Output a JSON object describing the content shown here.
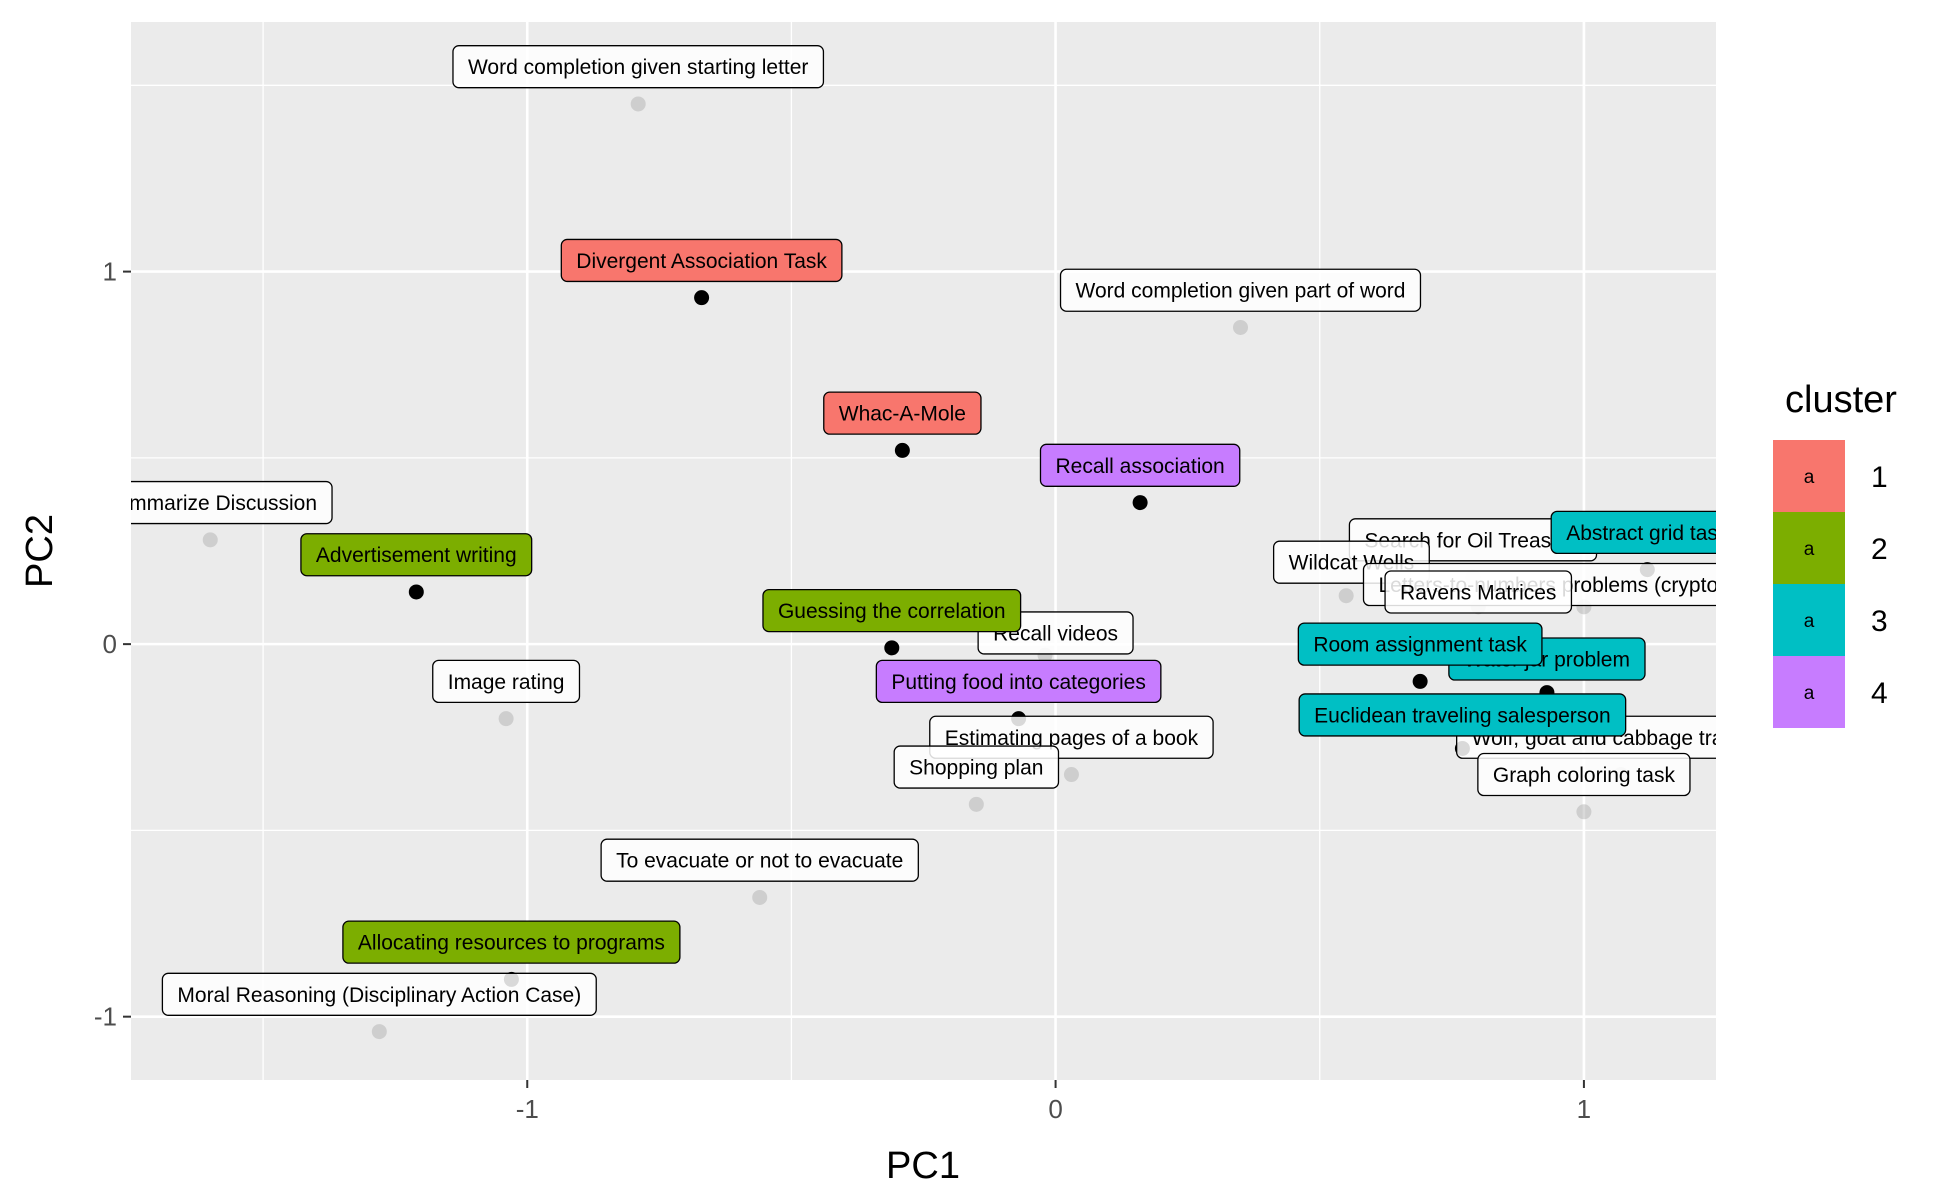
{
  "chart_data": {
    "type": "scatter",
    "xlabel": "PC1",
    "ylabel": "PC2",
    "xlim": [
      -1.75,
      1.25
    ],
    "ylim": [
      -1.17,
      1.67
    ],
    "x_ticks": [
      -1,
      0,
      1
    ],
    "x_tick_labels": [
      "-1",
      "0",
      "1"
    ],
    "y_ticks": [
      -1,
      0,
      1
    ],
    "y_tick_labels": [
      "-1",
      "0",
      "1"
    ],
    "grid": true,
    "legend": {
      "title": "cluster",
      "position": "right",
      "key_glyph": "a",
      "entries": [
        {
          "label": "1",
          "color": "#F8766D"
        },
        {
          "label": "2",
          "color": "#7CAE00"
        },
        {
          "label": "3",
          "color": "#00BFC4"
        },
        {
          "label": "4",
          "color": "#C77CFF"
        }
      ]
    },
    "points": [
      {
        "label": "Word completion given starting letter",
        "x": -0.79,
        "y": 1.45,
        "cluster": null
      },
      {
        "label": "Divergent Association Task",
        "x": -0.67,
        "y": 0.93,
        "cluster": 1
      },
      {
        "label": "Word completion given part of word",
        "x": 0.35,
        "y": 0.85,
        "cluster": null
      },
      {
        "label": "Whac-A-Mole",
        "x": -0.29,
        "y": 0.52,
        "cluster": 1
      },
      {
        "label": "Recall association",
        "x": 0.16,
        "y": 0.38,
        "cluster": 4
      },
      {
        "label": "Summarize Discussion",
        "x": -1.6,
        "y": 0.28,
        "cluster": null
      },
      {
        "label": "Advertisement writing",
        "x": -1.21,
        "y": 0.14,
        "cluster": 2
      },
      {
        "label": "Search for Oil Treasure",
        "x": 0.79,
        "y": 0.18,
        "cluster": null
      },
      {
        "label": "Abstract grid task",
        "x": 1.12,
        "y": 0.2,
        "cluster": 3
      },
      {
        "label": "Wildcat Wells",
        "x": 0.55,
        "y": 0.13,
        "cluster": null
      },
      {
        "label": "Letters-to-numbers problems (cryptography)",
        "x": 1.0,
        "y": 0.1,
        "cluster": null
      },
      {
        "label": "Ravens Matrices",
        "x": 0.8,
        "y": 0.1,
        "cluster": null
      },
      {
        "label": "Guessing the correlation",
        "x": -0.31,
        "y": -0.01,
        "cluster": 2
      },
      {
        "label": "Recall videos",
        "x": -0.02,
        "y": -0.03,
        "cluster": null
      },
      {
        "label": "Room assignment task",
        "x": 0.69,
        "y": -0.1,
        "cluster": 3
      },
      {
        "label": "Unlabeled point",
        "x": 0.93,
        "y": -0.13,
        "cluster": 3
      },
      {
        "label": "Image rating",
        "x": -1.04,
        "y": -0.2,
        "cluster": null
      },
      {
        "label": "Putting food into categories",
        "x": -0.07,
        "y": -0.2,
        "cluster": 4
      },
      {
        "label": "Euclidean traveling salesperson",
        "x": 0.77,
        "y": -0.28,
        "cluster": 3
      },
      {
        "label": "Wolf, goat and cabbage transfer",
        "x": 1.07,
        "y": -0.35,
        "cluster": null
      },
      {
        "label": "Estimating pages of a book",
        "x": 0.03,
        "y": -0.35,
        "cluster": null
      },
      {
        "label": "Shopping plan",
        "x": -0.15,
        "y": -0.43,
        "cluster": null
      },
      {
        "label": "Graph coloring task",
        "x": 1.0,
        "y": -0.45,
        "cluster": null
      },
      {
        "label": "To evacuate or not to evacuate",
        "x": -0.56,
        "y": -0.68,
        "cluster": null
      },
      {
        "label": "Allocating resources to programs",
        "x": -1.03,
        "y": -0.9,
        "cluster": 2
      },
      {
        "label": "Moral Reasoning (Disciplinary Action Case)",
        "x": -1.28,
        "y": -1.04,
        "cluster": null
      }
    ],
    "labels": [
      {
        "text": "Word completion given starting letter",
        "cluster": null,
        "x": -0.79,
        "y": 1.55
      },
      {
        "text": "Divergent Association Task",
        "cluster": 1,
        "x": -0.67,
        "y": 1.03
      },
      {
        "text": "Word completion given part of word",
        "cluster": null,
        "x": 0.35,
        "y": 0.95
      },
      {
        "text": "Whac-A-Mole",
        "cluster": 1,
        "x": -0.29,
        "y": 0.62
      },
      {
        "text": "Recall association",
        "cluster": 4,
        "x": 0.16,
        "y": 0.48
      },
      {
        "text": "Summarize Discussion",
        "cluster": null,
        "x": -1.6,
        "y": 0.38
      },
      {
        "text": "Advertisement writing",
        "cluster": 2,
        "x": -1.21,
        "y": 0.24
      },
      {
        "text": "Search for Oil Treasure",
        "cluster": null,
        "x": 0.79,
        "y": 0.28
      },
      {
        "text": "Wildcat Wells",
        "cluster": null,
        "x": 0.56,
        "y": 0.22
      },
      {
        "text": "Letters-to-numbers problems (cryptography)",
        "cluster": null,
        "x": 1.0,
        "y": 0.16
      },
      {
        "text": "Ravens Matrices",
        "cluster": null,
        "x": 0.8,
        "y": 0.14
      },
      {
        "text": "Abstract grid task",
        "cluster": 3,
        "x": 1.12,
        "y": 0.3
      },
      {
        "text": "Recall videos",
        "cluster": null,
        "x": 0.0,
        "y": 0.03
      },
      {
        "text": "Guessing the correlation",
        "cluster": 2,
        "x": -0.31,
        "y": 0.09
      },
      {
        "text": "Water jar problem",
        "cluster": 3,
        "x": 0.93,
        "y": -0.04
      },
      {
        "text": "Room assignment task",
        "cluster": 3,
        "x": 0.69,
        "y": 0.0
      },
      {
        "text": "Image rating",
        "cluster": null,
        "x": -1.04,
        "y": -0.1
      },
      {
        "text": "Putting food into categories",
        "cluster": 4,
        "x": -0.07,
        "y": -0.1
      },
      {
        "text": "Wolf, goat and cabbage transfer",
        "cluster": null,
        "x": 1.07,
        "y": -0.25
      },
      {
        "text": "Estimating pages of a book",
        "cluster": null,
        "x": 0.03,
        "y": -0.25
      },
      {
        "text": "Euclidean traveling salesperson",
        "cluster": 3,
        "x": 0.77,
        "y": -0.19
      },
      {
        "text": "Shopping plan",
        "cluster": null,
        "x": -0.15,
        "y": -0.33
      },
      {
        "text": "Graph coloring task",
        "cluster": null,
        "x": 1.0,
        "y": -0.35
      },
      {
        "text": "To evacuate or not to evacuate",
        "cluster": null,
        "x": -0.56,
        "y": -0.58
      },
      {
        "text": "Allocating resources to programs",
        "cluster": 2,
        "x": -1.03,
        "y": -0.8
      },
      {
        "text": "Moral Reasoning (Disciplinary Action Case)",
        "cluster": null,
        "x": -1.28,
        "y": -0.94
      }
    ]
  }
}
